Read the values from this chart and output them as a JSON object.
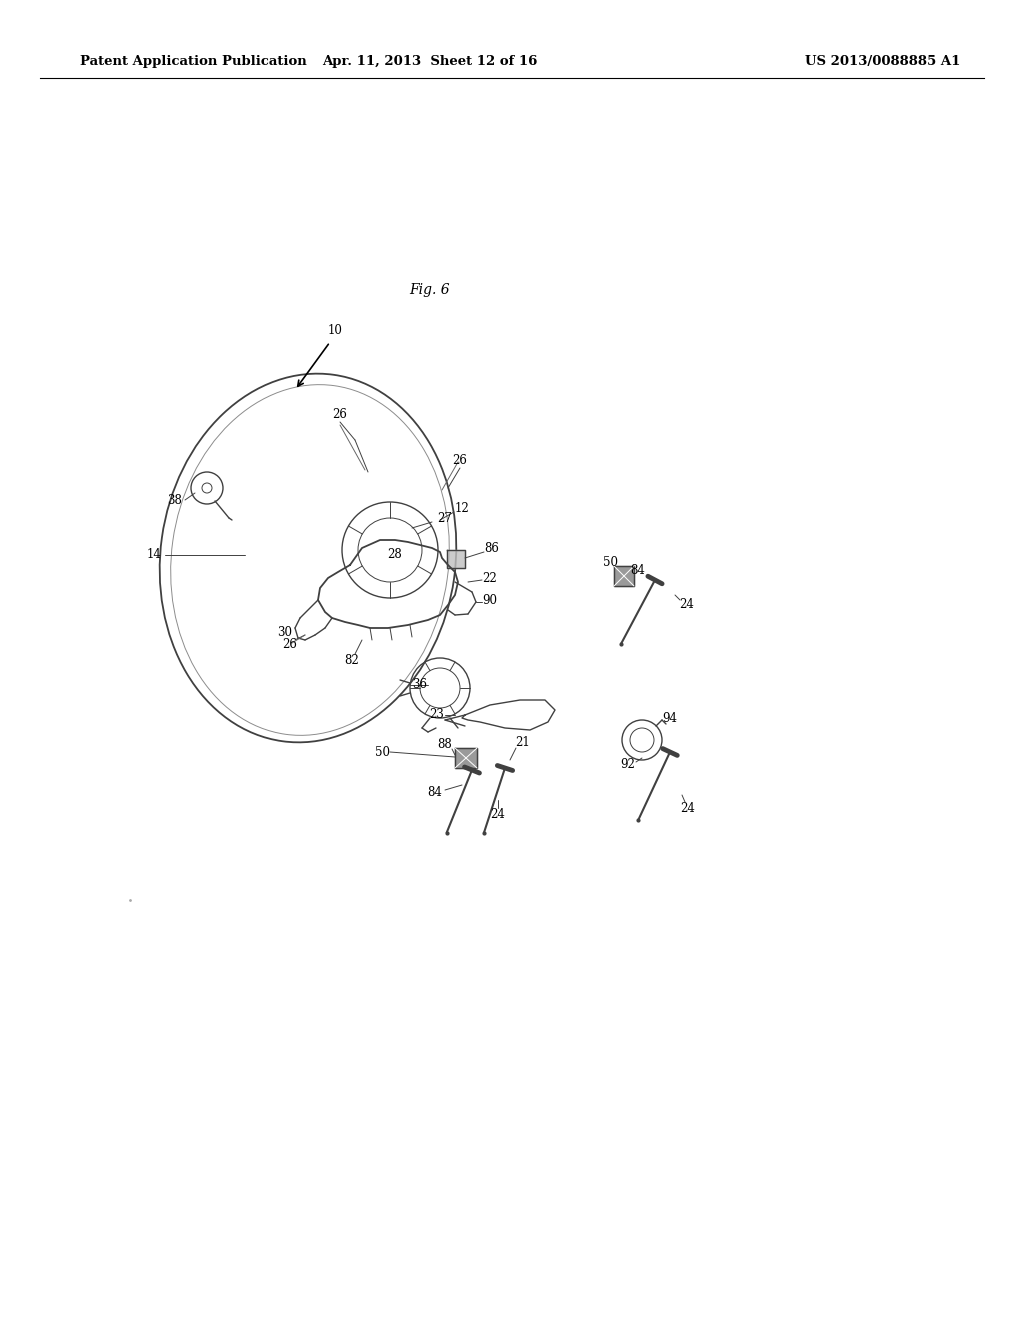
{
  "fig_label": "Fig. 6",
  "header_left": "Patent Application Publication",
  "header_center": "Apr. 11, 2013  Sheet 12 of 16",
  "header_right": "US 2013/0088885 A1",
  "background_color": "#ffffff",
  "text_color": "#000000",
  "line_color": "#404040",
  "label_fontsize": 8.5,
  "header_fontsize": 9.5,
  "fig_label_fontsize": 10
}
